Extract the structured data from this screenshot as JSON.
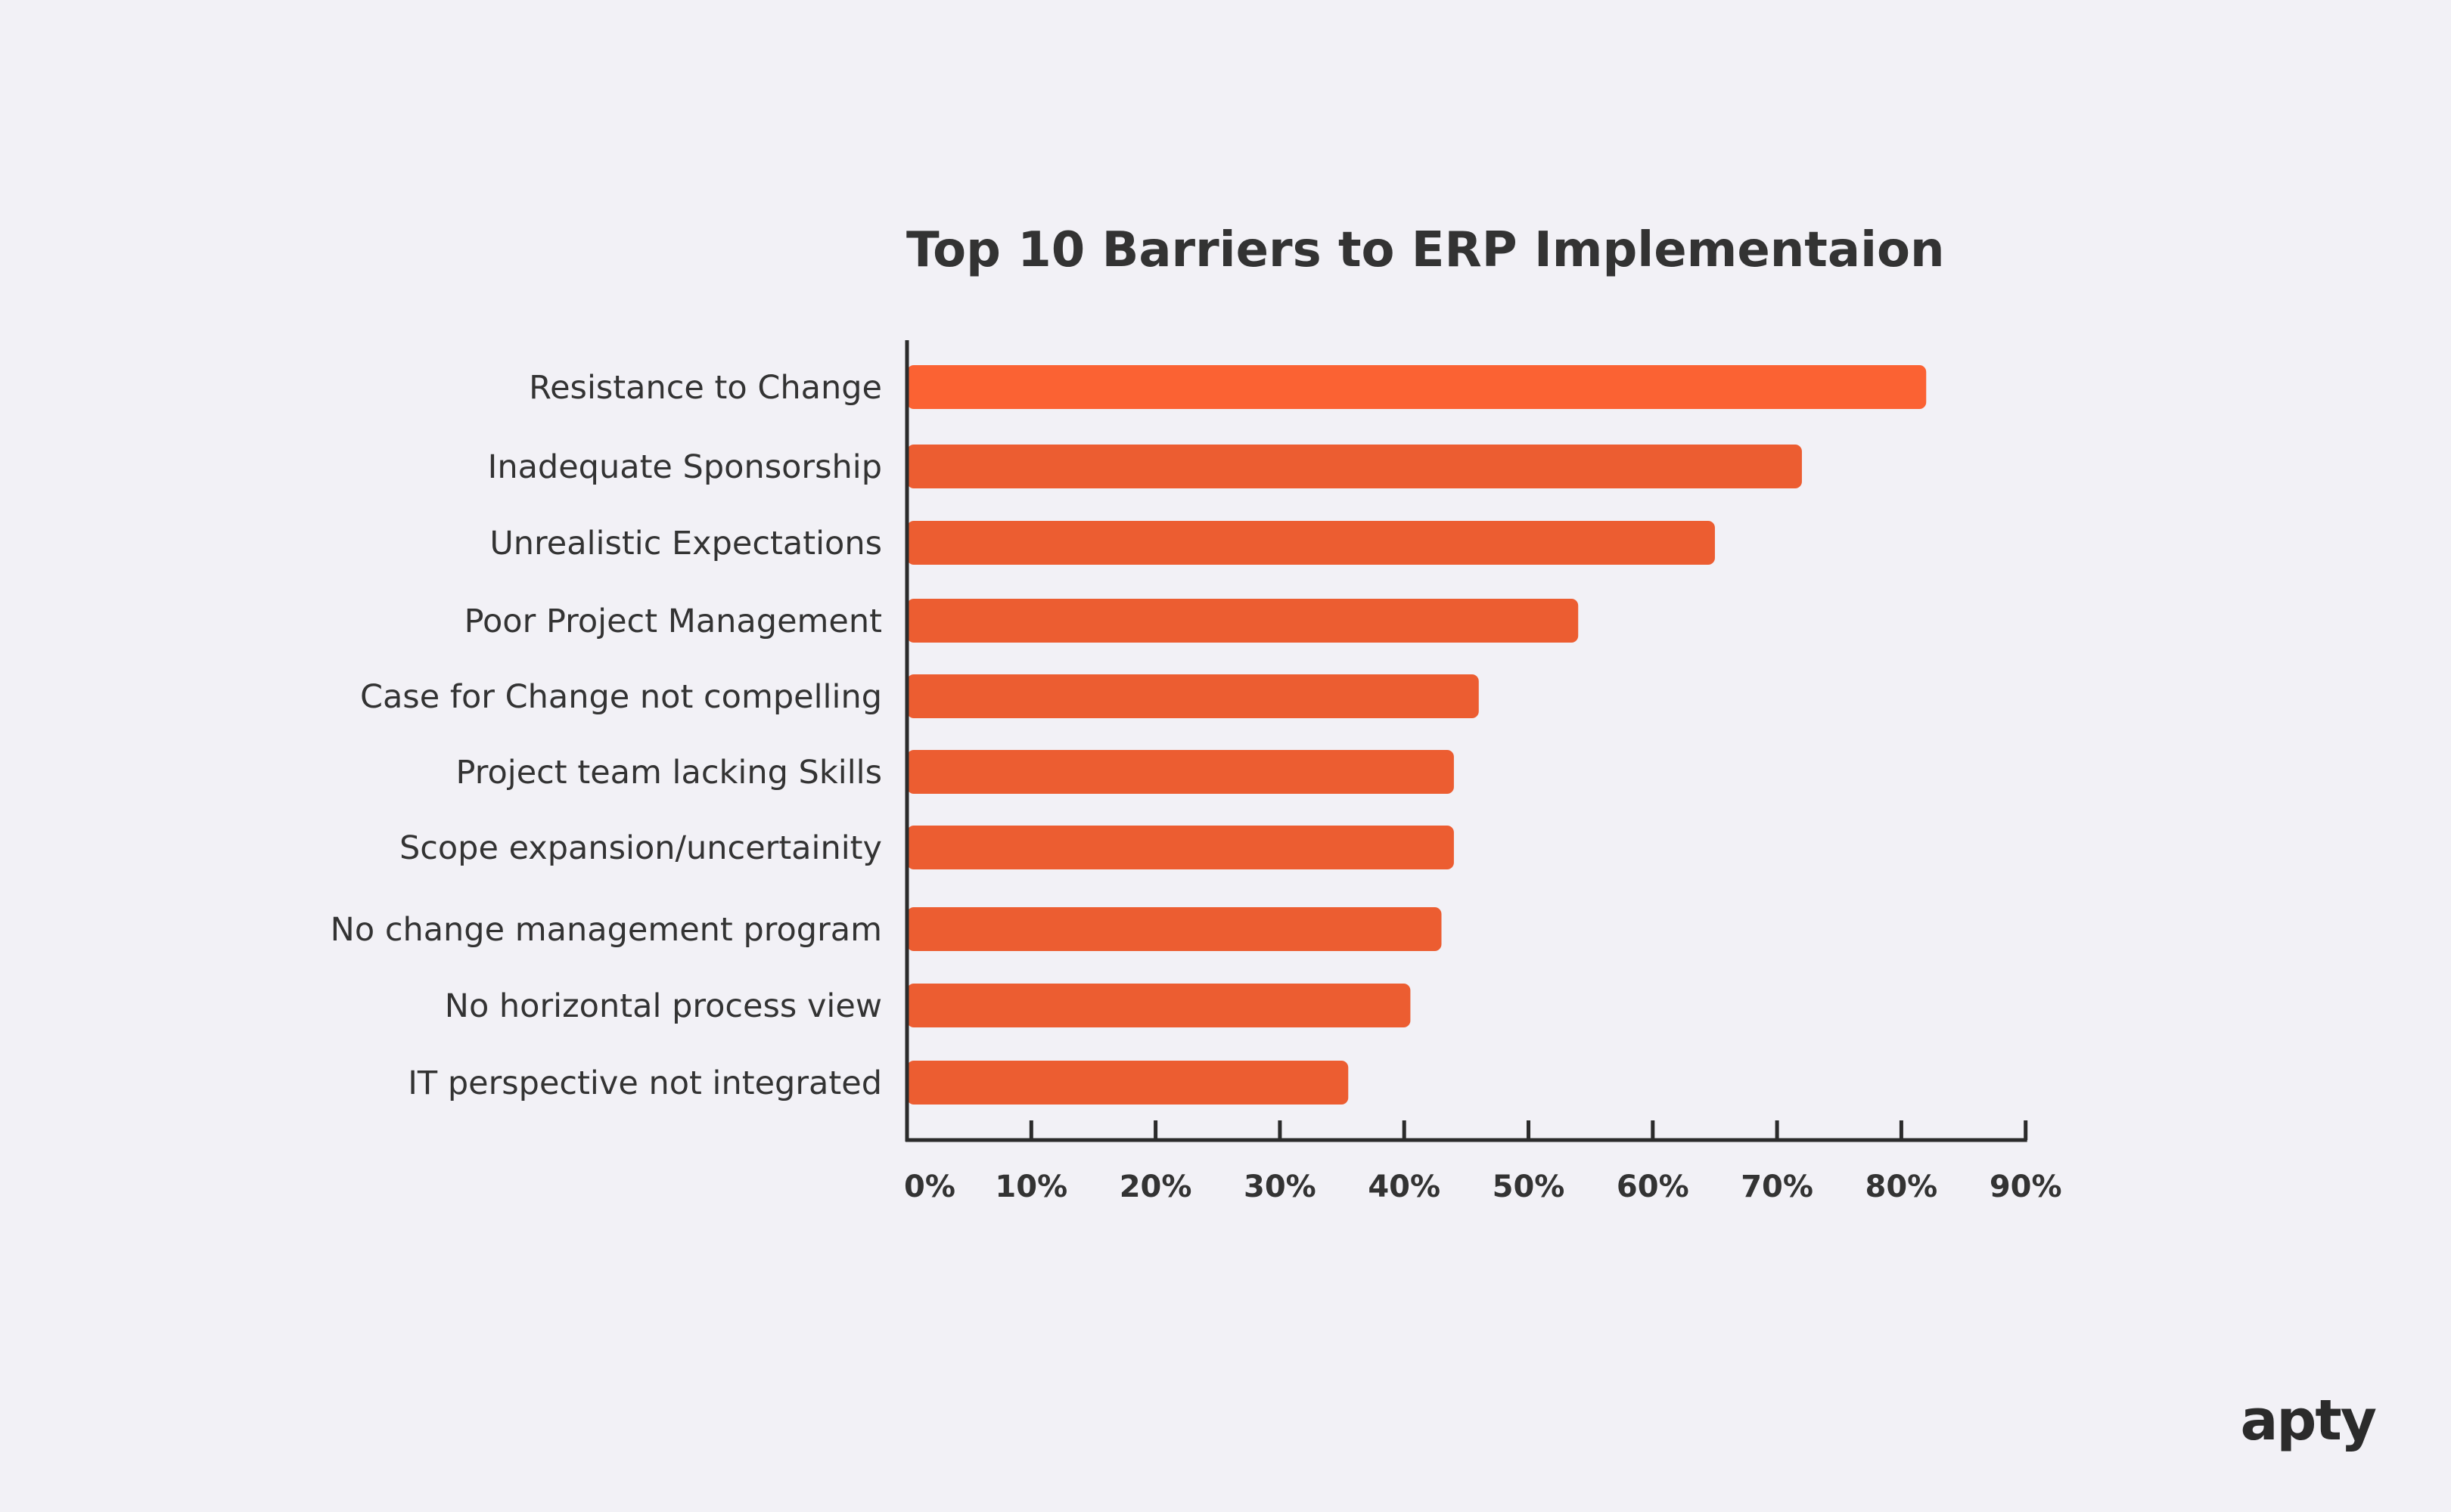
{
  "brand": {
    "logo_text": "apty"
  },
  "colors": {
    "background": "#f2f1f6",
    "bar_primary": "#fb6233",
    "bar": "#ec5d31",
    "text": "#333333",
    "axis": "#2b2b2b"
  },
  "chart_data": {
    "type": "bar",
    "orientation": "horizontal",
    "title": "Top 10 Barriers to ERP Implementaion",
    "xlabel": "",
    "ylabel": "",
    "categories": [
      "Resistance to Change",
      "Inadequate Sponsorship",
      "Unrealistic Expectations",
      "Poor Project Management",
      "Case for Change not compelling",
      "Project team lacking Skills",
      "Scope expansion/uncertainity",
      "No change management program",
      "No horizontal process view",
      "IT perspective not integrated"
    ],
    "values": [
      82,
      72,
      65,
      54,
      46,
      44,
      44,
      43,
      40.5,
      35.5
    ],
    "unit": "%",
    "xlim": [
      0,
      90
    ],
    "xticks": [
      0,
      10,
      20,
      30,
      40,
      50,
      60,
      70,
      80,
      90
    ],
    "tick_labels": [
      "0%",
      "10%",
      "20%",
      "30%",
      "40%",
      "50%",
      "60%",
      "70%",
      "80%",
      "90%"
    ],
    "grid": false,
    "legend": "none"
  }
}
